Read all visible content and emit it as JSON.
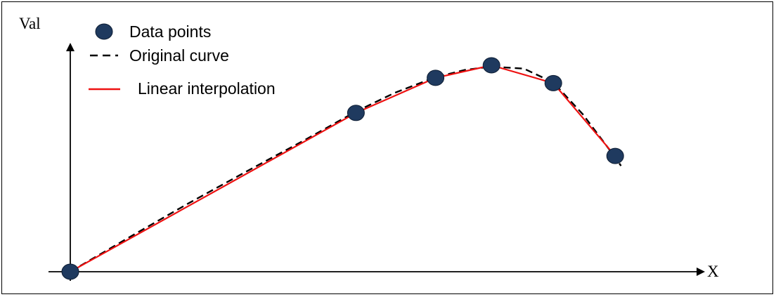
{
  "chart_data": {
    "type": "line",
    "title": "",
    "xlabel": "X",
    "ylabel": "Val",
    "xlim": [
      0,
      10
    ],
    "ylim": [
      0,
      3.3
    ],
    "grid": false,
    "legend_placement": "top-left",
    "data_points": {
      "name": "Data points",
      "color": "#1f3a5f",
      "x": [
        0,
        4.85,
        6.2,
        7.15,
        8.2,
        9.25
      ],
      "y": [
        0,
        2.4,
        2.93,
        3.12,
        2.85,
        1.75
      ]
    },
    "series": [
      {
        "name": "Original curve",
        "style": "dashed",
        "color": "#000000",
        "x": [
          0,
          1.0,
          2.0,
          3.0,
          4.0,
          4.85,
          5.5,
          6.2,
          6.7,
          7.15,
          7.7,
          8.2,
          8.7,
          9.25,
          9.35
        ],
        "y": [
          0,
          0.52,
          1.03,
          1.52,
          2.0,
          2.42,
          2.7,
          2.94,
          3.05,
          3.1,
          3.07,
          2.86,
          2.38,
          1.73,
          1.6
        ]
      },
      {
        "name": "Linear interpolation",
        "style": "solid",
        "color": "#ee1111",
        "x": [
          0,
          4.85,
          6.2,
          7.15,
          8.2,
          9.25
        ],
        "y": [
          0,
          2.4,
          2.93,
          3.12,
          2.85,
          1.75
        ]
      }
    ]
  }
}
